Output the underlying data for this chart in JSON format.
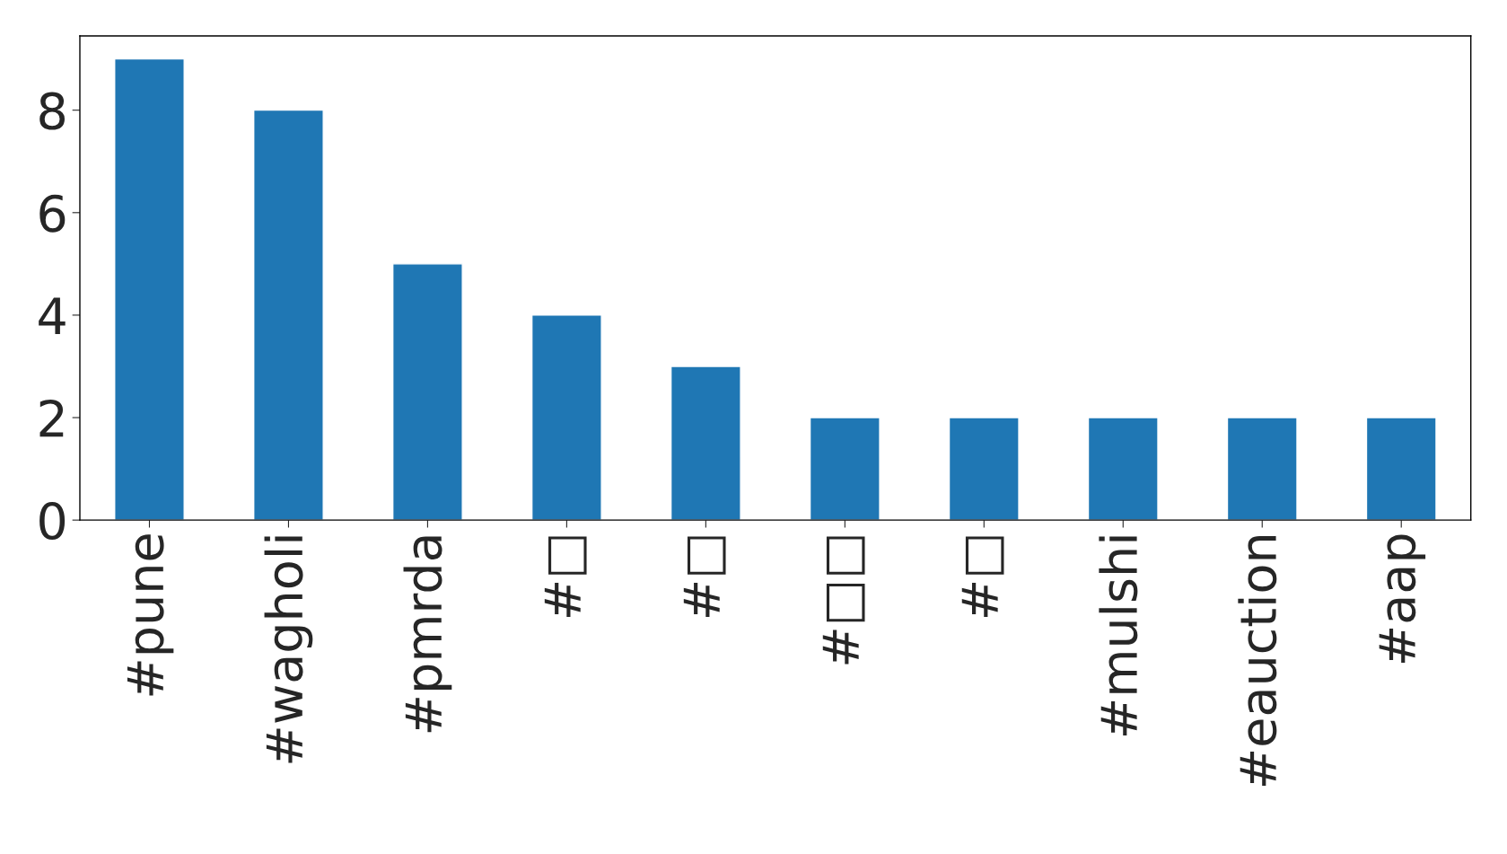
{
  "chart_data": {
    "type": "bar",
    "categories": [
      "#pune",
      "#wagholi",
      "#pmrda",
      "#□",
      "#□",
      "#□□",
      "#□",
      "#mulshi",
      "#eauction",
      "#aap"
    ],
    "values": [
      9,
      8,
      5,
      4,
      3,
      2,
      2,
      2,
      2,
      2
    ],
    "color": "#1f77b4",
    "ylim": [
      0,
      9.45
    ],
    "yticks": [
      0,
      2,
      4,
      6,
      8
    ],
    "grid": false,
    "legend": false
  }
}
